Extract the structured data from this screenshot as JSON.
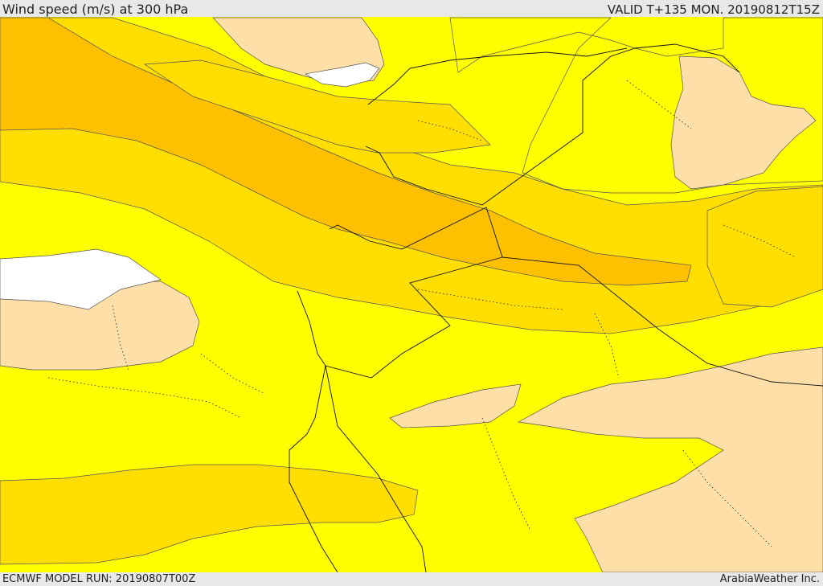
{
  "header": {
    "title": "Wind speed (m/s) at 300 hPa",
    "valid": "VALID T+135 MON. 20190812T15Z"
  },
  "footer": {
    "model_run": "ECMWF MODEL RUN: 20190807T00Z",
    "credit": "ArabiaWeather Inc."
  },
  "map": {
    "colors": {
      "background": "#ffff00",
      "band_light": "#ffde00",
      "band_orange": "#ffc000",
      "low_wind": "#ffdfa8",
      "no_data": "#ffffff",
      "contour": "#555555",
      "border": "#111111"
    }
  }
}
